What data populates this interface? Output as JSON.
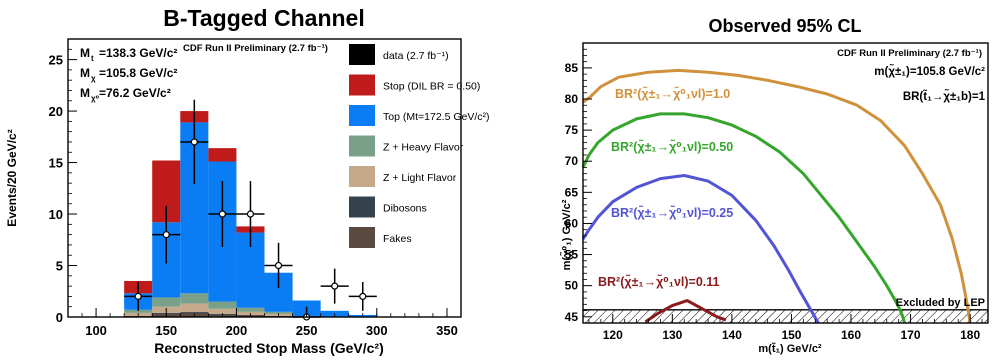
{
  "chart_data": [
    {
      "type": "bar",
      "stacked": true,
      "title": "B-Tagged Channel",
      "xlabel": "Reconstructed Stop Mass (GeV/c²)",
      "ylabel": "Events/20 GeV/c²",
      "xlim": [
        80,
        360
      ],
      "ylim": [
        0,
        27
      ],
      "xticks": [
        100,
        150,
        200,
        250,
        300,
        350
      ],
      "yticks": [
        0,
        5,
        10,
        15,
        20,
        25
      ],
      "grid": false,
      "legend_position": "right",
      "info_label": "CDF Run II Preliminary (2.7 fb⁻¹)",
      "annotations": [
        {
          "base": "M",
          "sub": "t",
          "value": "=138.3 GeV/c²"
        },
        {
          "base": "M",
          "sub": "χ",
          "value": "=105.8 GeV/c²"
        },
        {
          "base": "M",
          "sub": "χ⁰",
          "value": "=76.2 GeV/c²"
        }
      ],
      "bin_edges": [
        100,
        120,
        140,
        160,
        180,
        200,
        220,
        240,
        260,
        280,
        300
      ],
      "series": [
        {
          "name": "Fakes",
          "color": "#5b4a40",
          "values": [
            0,
            0.1,
            0.3,
            0.4,
            0.2,
            0.2,
            0.1,
            0,
            0,
            0
          ]
        },
        {
          "name": "Dibosons",
          "color": "#34424c",
          "values": [
            0,
            0,
            0.1,
            0.1,
            0.1,
            0,
            0,
            0,
            0,
            0
          ]
        },
        {
          "name": "Z + Light Flavor",
          "color": "#c6a98a",
          "values": [
            0,
            0.3,
            0.6,
            0.8,
            0.5,
            0.3,
            0.2,
            0,
            0,
            0
          ]
        },
        {
          "name": "Z + Heavy Flavor",
          "color": "#7aa08a",
          "values": [
            0,
            0.3,
            0.9,
            1.0,
            0.7,
            0.4,
            0.2,
            0,
            0,
            0
          ]
        },
        {
          "name": "Top (Mt=172.5 GeV/c²)",
          "color": "#0a7cf4",
          "values": [
            0,
            1.6,
            7.3,
            16.6,
            13.6,
            7.3,
            3.8,
            1.6,
            0.6,
            0.2
          ]
        },
        {
          "name": "Stop (DIL BR = 0.50)",
          "color": "#bf1b1b",
          "values": [
            0,
            1.2,
            6.0,
            1.1,
            1.3,
            0.6,
            0,
            0,
            0,
            0
          ]
        }
      ],
      "data_series": {
        "name": "data (2.7 fb⁻¹)",
        "x": [
          130,
          150,
          170,
          190,
          210,
          230,
          250,
          270,
          290
        ],
        "y": [
          2,
          8,
          17,
          10,
          10,
          5,
          0,
          3,
          2
        ],
        "yerr": [
          1.4,
          2.8,
          4.1,
          3.2,
          3.2,
          2.2,
          1.0,
          1.7,
          1.4
        ]
      },
      "legend": [
        {
          "label": "data (2.7 fb⁻¹)",
          "color": "#000000"
        },
        {
          "label": "Stop (DIL BR = 0.50)",
          "color": "#bf1b1b"
        },
        {
          "label": "Top (Mt=172.5 GeV/c²)",
          "color": "#0a7cf4"
        },
        {
          "label": "Z + Heavy Flavor",
          "color": "#7aa08a"
        },
        {
          "label": "Z + Light Flavor",
          "color": "#c6a98a"
        },
        {
          "label": "Dibosons",
          "color": "#34424c"
        },
        {
          "label": "Fakes",
          "color": "#5b4a40"
        }
      ]
    },
    {
      "type": "line",
      "title": "Observed 95% CL",
      "xlabel": "m(t̃₁) GeV/c²",
      "ylabel": "m(χ̃⁰₁) GeV/c²",
      "xlim": [
        115,
        183
      ],
      "ylim": [
        44,
        89
      ],
      "xticks": [
        120,
        130,
        140,
        150,
        160,
        170,
        180
      ],
      "yticks": [
        45,
        50,
        55,
        60,
        65,
        70,
        75,
        80,
        85
      ],
      "grid": false,
      "info_lines": [
        "CDF Run II Preliminary (2.7 fb⁻¹)",
        "m(χ̃±₁)=105.8 GeV/c²",
        "BR(t̃₁→χ̃±₁b)=1"
      ],
      "excluded_label": "Excluded by LEP",
      "lep_limit": 45,
      "series": [
        {
          "name": "BR²(χ̃±₁→χ̃⁰₁νl)=1.0",
          "color": "#d0913c",
          "x": [
            115,
            116.2,
            118,
            121,
            126,
            131,
            136,
            141,
            146,
            151,
            156,
            161,
            165,
            169,
            172,
            175,
            177,
            178.5,
            179.3,
            179.7,
            180
          ],
          "y": [
            79.5,
            80.3,
            82,
            83.5,
            84.3,
            84.6,
            84.3,
            83.8,
            83.0,
            82.0,
            80.8,
            79.0,
            76.5,
            72.5,
            68,
            63,
            57.5,
            52,
            48,
            46,
            44
          ]
        },
        {
          "name": "BR²(χ̃±₁→χ̃⁰₁νl)=0.50",
          "color": "#35a52c",
          "x": [
            115,
            116,
            117.5,
            120,
            124,
            128,
            132,
            136,
            140,
            144,
            148,
            152,
            155,
            158,
            161,
            164,
            166,
            167.5,
            168.3,
            168.7,
            169
          ],
          "y": [
            69,
            71,
            73,
            75,
            76.8,
            77.6,
            77.6,
            77,
            75.8,
            74,
            71.5,
            68,
            64.5,
            61,
            57,
            53,
            50,
            47.5,
            46,
            45,
            44
          ]
        },
        {
          "name": "BR²(χ̃±₁→χ̃⁰₁νl)=0.25",
          "color": "#5254d6",
          "x": [
            115,
            116,
            117.5,
            120,
            124,
            128,
            132,
            136,
            140,
            144,
            147,
            149.5,
            151.5,
            153,
            153.8,
            154.2,
            154.5
          ],
          "y": [
            57.5,
            59,
            61,
            63.5,
            65.8,
            67.2,
            67.7,
            66.8,
            64.5,
            60.5,
            56.5,
            52.5,
            49,
            46.5,
            45.2,
            44.5,
            44
          ]
        },
        {
          "name": "BR²(χ̃±₁→χ̃⁰₁νl)=0.11",
          "color": "#8b1b1b",
          "x": [
            125.5,
            127.5,
            130,
            132.5,
            135,
            137.5,
            139
          ],
          "y": [
            44.2,
            45.5,
            46.8,
            47.6,
            46.3,
            45,
            44.5
          ]
        }
      ]
    }
  ]
}
